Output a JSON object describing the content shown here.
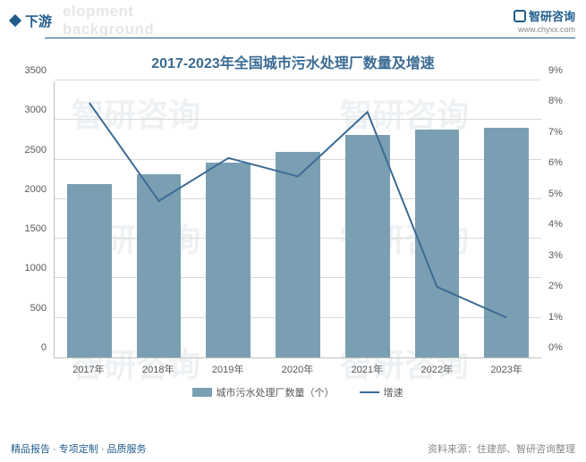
{
  "header": {
    "section_label": "下游",
    "bg_text": "elopment background",
    "brand_name": "智研咨询",
    "brand_url": "www.chyxx.com"
  },
  "chart": {
    "type": "bar+line",
    "title": "2017-2023年全国城市污水处理厂数量及增速",
    "categories": [
      "2017年",
      "2018年",
      "2019年",
      "2020年",
      "2021年",
      "2022年",
      "2023年"
    ],
    "bar_series": {
      "name": "城市污水处理厂数量（个）",
      "values": [
        2200,
        2320,
        2470,
        2600,
        2820,
        2890,
        2910
      ],
      "color": "#7a9fb3"
    },
    "line_series": {
      "name": "增速",
      "values": [
        8.3,
        5.1,
        6.5,
        5.9,
        8.0,
        2.3,
        1.3
      ],
      "color": "#3b6b94",
      "width": 2
    },
    "y_left": {
      "min": 0,
      "max": 3500,
      "step": 500,
      "ticks": [
        0,
        500,
        1000,
        1500,
        2000,
        2500,
        3000,
        3500
      ]
    },
    "y_right": {
      "min": 0,
      "max": 9,
      "step": 1,
      "ticks": [
        "0%",
        "1%",
        "2%",
        "3%",
        "4%",
        "5%",
        "6%",
        "7%",
        "8%",
        "9%"
      ]
    },
    "grid_color": "#d9d9d9",
    "axis_color": "#bfbfbf",
    "background": "#ffffff",
    "label_fontsize": 11,
    "title_fontsize": 16
  },
  "footer": {
    "left_text": "精品报告 · 专项定制 · 品质服务",
    "right_text": "资料来源：住建部、智研咨询整理"
  },
  "watermarks": [
    "智研咨询",
    "智研咨询",
    "智研咨询",
    "智研咨询",
    "智研咨询",
    "智研咨询"
  ]
}
